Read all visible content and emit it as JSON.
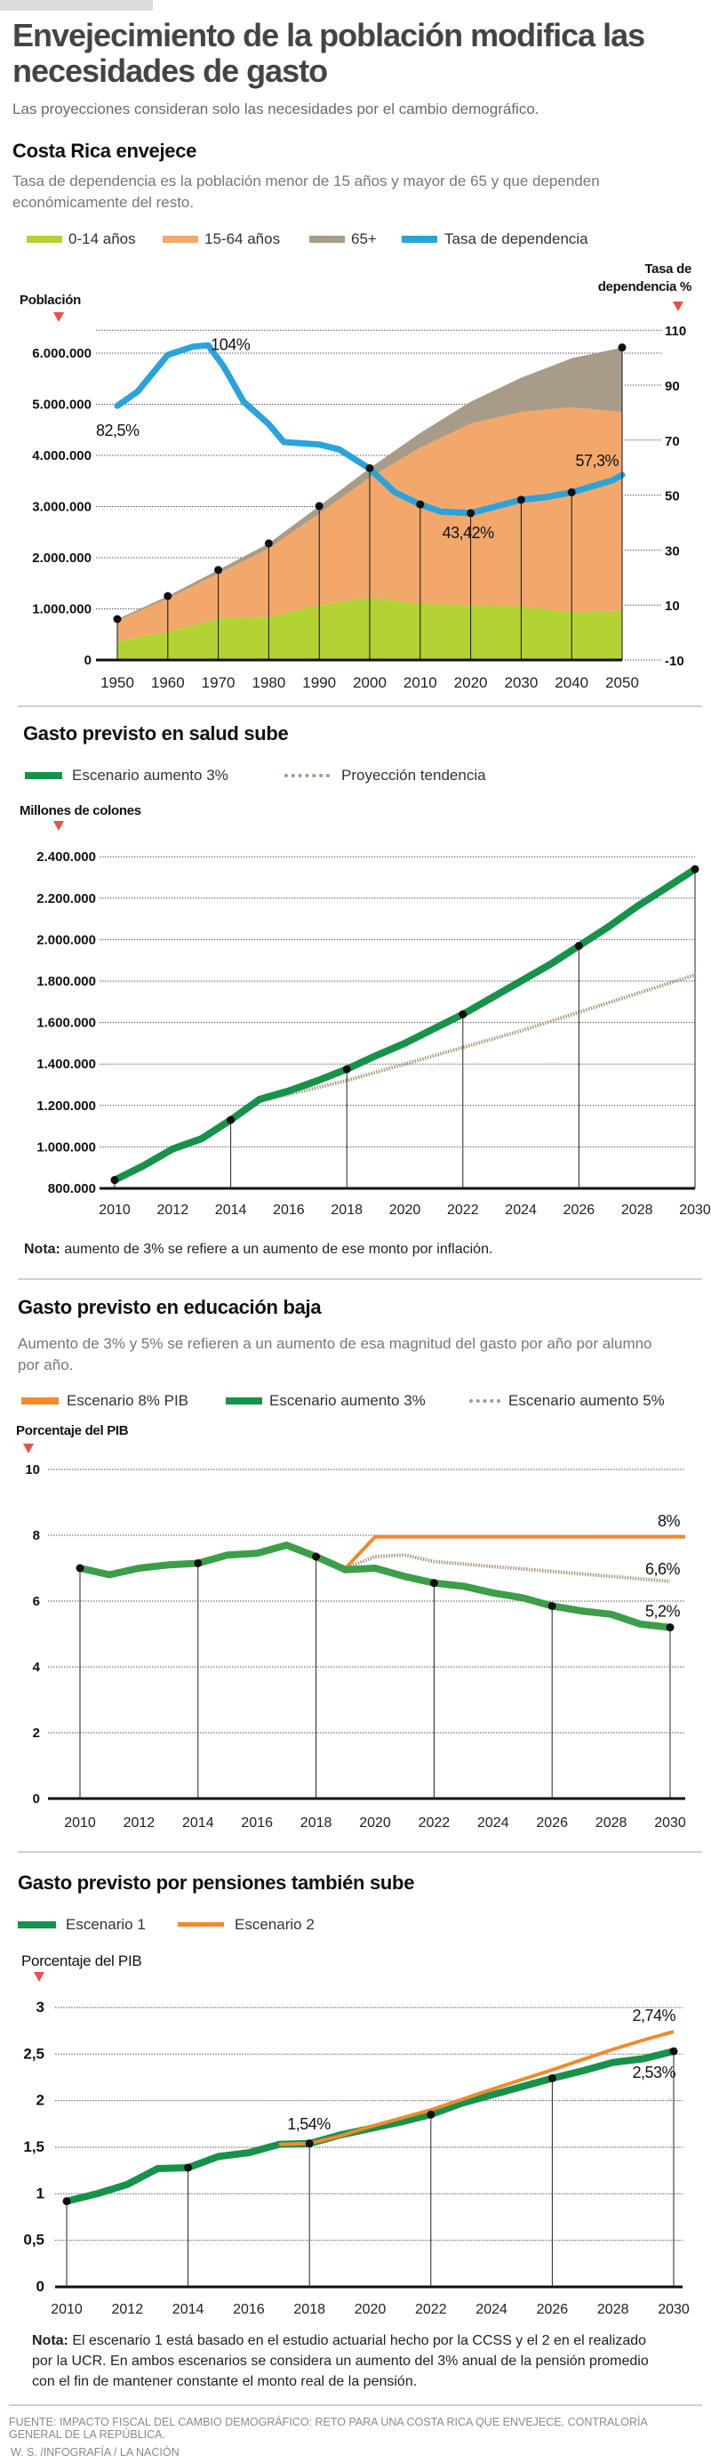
{
  "header": {
    "title": "Envejecimiento de la población modifica las necesidades de gasto",
    "subtitle": "Las proyecciones consideran solo las necesidades por el cambio demográfico."
  },
  "colors": {
    "green_0_14": "#b3d334",
    "orange_15_64": "#f2a86b",
    "gray_65": "#a89c88",
    "blue_rate": "#29a3dc",
    "green_line": "#17924a",
    "green_line_edu": "#3b9e48",
    "orange_line": "#f08a2c",
    "dotted_line": "#a89880",
    "triangle": "#e8504a"
  },
  "section1": {
    "title": "Costa Rica envejece",
    "description": "Tasa de dependencia es la población menor de 15 años y mayor de 65 y que dependen económicamente del resto.",
    "legend": [
      "0-14 años",
      "15-64 años",
      "65+",
      "Tasa de dependencia"
    ],
    "left_axis_title": "Población",
    "right_axis_title_1": "Tasa de",
    "right_axis_title_2": "dependencia %"
  },
  "section2": {
    "title": "Gasto previsto en salud sube",
    "legend": [
      "Escenario aumento 3%",
      "Proyección tendencia"
    ],
    "axis_title": "Millones de colones",
    "note_label": "Nota:",
    "note_text": " aumento de 3% se refiere a un aumento de ese monto por inflación."
  },
  "section3": {
    "title": "Gasto previsto en educación baja",
    "description": "Aumento de 3% y 5% se refieren a un aumento de esa magnitud del gasto por año por alumno por año.",
    "legend": [
      "Escenario 8% PIB",
      "Escenario aumento 3%",
      "Escenario aumento 5%"
    ],
    "axis_title": "Porcentaje del PIB"
  },
  "section4": {
    "title": "Gasto previsto por pensiones también sube",
    "legend": [
      "Escenario 1",
      "Escenario 2"
    ],
    "axis_title": "Porcentaje del PIB",
    "note_label": "Nota:",
    "note_text": " El escenario 1 está basado en el estudio actuarial hecho por la CCSS y el 2 en el realizado por la UCR. En ambos escenarios se considera un aumento del 3% anual de la pensión promedio con el fin de mantener constante el monto real de la pensión."
  },
  "footer": {
    "source": "Fuente: Impacto fiscal del cambio demográfico: reto para una Costa Rica que envejece. Contraloría General de la República.",
    "credit": "W. S. /INFOGRAFÍA / LA NACIÓN"
  },
  "chart_data": [
    {
      "type": "area",
      "stacked": true,
      "x": [
        1950,
        1960,
        1970,
        1980,
        1990,
        2000,
        2010,
        2020,
        2030,
        2040,
        2050
      ],
      "xticks": [
        "1950",
        "1960",
        "1970",
        "1980",
        "1990",
        "2000",
        "2010",
        "2020",
        "2030",
        "2040",
        "2050"
      ],
      "series": [
        {
          "name": "0-14 años",
          "values": [
            370000,
            550000,
            810000,
            840000,
            1070000,
            1220000,
            1100000,
            1070000,
            1050000,
            930000,
            960000
          ]
        },
        {
          "name": "15-64 años",
          "values": [
            400000,
            650000,
            880000,
            1340000,
            1790000,
            2350000,
            3050000,
            3550000,
            3800000,
            4010000,
            3890000
          ]
        },
        {
          "name": "65+",
          "values": [
            30000,
            50000,
            70000,
            100000,
            150000,
            180000,
            290000,
            430000,
            670000,
            960000,
            1260000
          ]
        }
      ],
      "line_series": {
        "name": "Tasa de dependencia",
        "axis": "right",
        "x": [
          1950,
          1954,
          1960,
          1965,
          1968,
          1971,
          1975,
          1980,
          1983,
          1990,
          1994,
          2000,
          2005,
          2010,
          2014,
          2020,
          2030,
          2035,
          2040,
          2048,
          2050
        ],
        "values": [
          82.5,
          87.6,
          101,
          104,
          104.5,
          97,
          84,
          75.8,
          69.3,
          68.4,
          66.6,
          59.6,
          51,
          46.6,
          44,
          43.42,
          48.3,
          49.3,
          51,
          55.3,
          57.3
        ]
      },
      "markers": [
        {
          "year": 1950,
          "on": "population"
        },
        {
          "year": 1960,
          "on": "population"
        },
        {
          "year": 1970,
          "on": "population"
        },
        {
          "year": 1980,
          "on": "population"
        },
        {
          "year": 1990,
          "on": "population"
        },
        {
          "year": 2000,
          "on": "population"
        },
        {
          "year": 2010,
          "on": "rate"
        },
        {
          "year": 2020,
          "on": "rate"
        },
        {
          "year": 2030,
          "on": "rate"
        },
        {
          "year": 2040,
          "on": "rate"
        },
        {
          "year": 2050,
          "on": "population"
        }
      ],
      "annotations": [
        {
          "text": "82,5%",
          "year": 1950,
          "value": 82.5
        },
        {
          "text": "104%",
          "year": 1965,
          "value": 104
        },
        {
          "text": "43,42%",
          "year": 2020,
          "value": 43.42
        },
        {
          "text": "57,3%",
          "year": 2050,
          "value": 57.3
        }
      ],
      "ylim_left": [
        0,
        6000000
      ],
      "yticks_left": [
        {
          "value": 0,
          "label": "0"
        },
        {
          "value": 1000000,
          "label": "1.000.000"
        },
        {
          "value": 2000000,
          "label": "2.000.000"
        },
        {
          "value": 3000000,
          "label": "3.000.000"
        },
        {
          "value": 4000000,
          "label": "4.000.000"
        },
        {
          "value": 5000000,
          "label": "5.000.000"
        },
        {
          "value": 6000000,
          "label": "6.000.000"
        }
      ],
      "ylim_right": [
        -10,
        110
      ],
      "yticks_right": [
        {
          "value": -10,
          "label": "-10"
        },
        {
          "value": 10,
          "label": "10"
        },
        {
          "value": 30,
          "label": "30"
        },
        {
          "value": 50,
          "label": "50"
        },
        {
          "value": 70,
          "label": "70"
        },
        {
          "value": 90,
          "label": "90"
        },
        {
          "value": 110,
          "label": "110"
        }
      ],
      "grid": "dotted horizontal"
    },
    {
      "type": "line",
      "x": [
        2010,
        2011,
        2012,
        2013,
        2014,
        2015,
        2016,
        2017,
        2018,
        2019,
        2020,
        2021,
        2022,
        2023,
        2024,
        2025,
        2026,
        2027,
        2028,
        2029,
        2030
      ],
      "series": [
        {
          "name": "Escenario aumento 3%",
          "style": "solid",
          "values": [
            840000,
            910000,
            990000,
            1040000,
            1130000,
            1230000,
            1270000,
            1320000,
            1375000,
            1440000,
            1500000,
            1570000,
            1640000,
            1720000,
            1800000,
            1880000,
            1970000,
            2060000,
            2160000,
            2250000,
            2340000
          ]
        },
        {
          "name": "Proyección tendencia",
          "style": "dotted",
          "x": [
            2015,
            2018,
            2020,
            2022,
            2024,
            2026,
            2028,
            2030
          ],
          "values": [
            1220000,
            1320000,
            1400000,
            1480000,
            1560000,
            1650000,
            1740000,
            1830000
          ]
        }
      ],
      "markers": [
        2010,
        2014,
        2018,
        2022,
        2026,
        2030
      ],
      "xticks": [
        "2010",
        "2012",
        "2014",
        "2016",
        "2018",
        "2020",
        "2022",
        "2024",
        "2026",
        "2028",
        "2030"
      ],
      "ylim": [
        800000,
        2400000
      ],
      "yticks": [
        {
          "value": 800000,
          "label": "800.000"
        },
        {
          "value": 1000000,
          "label": "1.000.000"
        },
        {
          "value": 1200000,
          "label": "1.200.000"
        },
        {
          "value": 1400000,
          "label": "1.400.000"
        },
        {
          "value": 1600000,
          "label": "1.600.000"
        },
        {
          "value": 1800000,
          "label": "1.800.000"
        },
        {
          "value": 2000000,
          "label": "2.000.000"
        },
        {
          "value": 2200000,
          "label": "2.200.000"
        },
        {
          "value": 2400000,
          "label": "2.400.000"
        }
      ],
      "grid": "dotted horizontal"
    },
    {
      "type": "line",
      "x": [
        2010,
        2011,
        2012,
        2013,
        2014,
        2015,
        2016,
        2017,
        2018,
        2019,
        2020,
        2021,
        2022,
        2023,
        2024,
        2025,
        2026,
        2027,
        2028,
        2029,
        2030
      ],
      "series": [
        {
          "name": "Escenario aumento 3%",
          "style": "solid",
          "values": [
            7.0,
            6.8,
            7.0,
            7.1,
            7.15,
            7.4,
            7.45,
            7.7,
            7.35,
            6.95,
            7.0,
            6.75,
            6.55,
            6.45,
            6.25,
            6.1,
            5.85,
            5.7,
            5.6,
            5.3,
            5.2
          ]
        },
        {
          "name": "Escenario 8% PIB",
          "style": "solid",
          "x": [
            2019,
            2020,
            2030
          ],
          "values": [
            7.0,
            7.95,
            7.95
          ]
        },
        {
          "name": "Escenario aumento 5%",
          "style": "dotted",
          "x": [
            2019,
            2020,
            2021,
            2022,
            2024,
            2026,
            2028,
            2030
          ],
          "values": [
            7.0,
            7.35,
            7.4,
            7.2,
            7.05,
            6.9,
            6.75,
            6.6
          ]
        }
      ],
      "markers": [
        2010,
        2014,
        2018,
        2022,
        2026,
        2030
      ],
      "annotations": [
        {
          "text": "8%",
          "year": 2030,
          "value": 7.95
        },
        {
          "text": "6,6%",
          "year": 2030,
          "value": 6.6
        },
        {
          "text": "5,2%",
          "year": 2030,
          "value": 5.2
        }
      ],
      "xticks": [
        "2010",
        "2012",
        "2014",
        "2016",
        "2018",
        "2020",
        "2022",
        "2024",
        "2026",
        "2028",
        "2030"
      ],
      "ylim": [
        0,
        10
      ],
      "yticks": [
        {
          "value": 0,
          "label": "0"
        },
        {
          "value": 2,
          "label": "2"
        },
        {
          "value": 4,
          "label": "4"
        },
        {
          "value": 6,
          "label": "6"
        },
        {
          "value": 8,
          "label": "8"
        },
        {
          "value": 10,
          "label": "10"
        }
      ],
      "grid": "dotted horizontal"
    },
    {
      "type": "line",
      "x": [
        2010,
        2011,
        2012,
        2013,
        2014,
        2015,
        2016,
        2017,
        2018,
        2019,
        2020,
        2021,
        2022,
        2023,
        2024,
        2025,
        2026,
        2027,
        2028,
        2029,
        2030
      ],
      "series": [
        {
          "name": "Escenario 1",
          "style": "solid",
          "values": [
            0.92,
            1.0,
            1.1,
            1.27,
            1.28,
            1.4,
            1.44,
            1.53,
            1.54,
            1.63,
            1.7,
            1.77,
            1.85,
            1.97,
            2.06,
            2.15,
            2.24,
            2.32,
            2.41,
            2.45,
            2.53
          ]
        },
        {
          "name": "Escenario 2",
          "style": "solid",
          "x": [
            2017,
            2018,
            2019,
            2020,
            2022,
            2024,
            2026,
            2028,
            2029,
            2030
          ],
          "values": [
            1.53,
            1.54,
            1.62,
            1.72,
            1.9,
            2.12,
            2.33,
            2.55,
            2.65,
            2.74
          ]
        }
      ],
      "markers": [
        2010,
        2014,
        2018,
        2022,
        2026,
        2030
      ],
      "annotations": [
        {
          "text": "1,54%",
          "year": 2018,
          "value": 1.54
        },
        {
          "text": "2,74%",
          "year": 2030,
          "value": 2.74
        },
        {
          "text": "2,53%",
          "year": 2030,
          "value": 2.53
        }
      ],
      "xticks": [
        "2010",
        "2012",
        "2014",
        "2016",
        "2018",
        "2020",
        "2022",
        "2024",
        "2026",
        "2028",
        "2030"
      ],
      "ylim": [
        0,
        3
      ],
      "yticks": [
        {
          "value": 0,
          "label": "0"
        },
        {
          "value": 0.5,
          "label": "0,5"
        },
        {
          "value": 1,
          "label": "1"
        },
        {
          "value": 1.5,
          "label": "1,5"
        },
        {
          "value": 2,
          "label": "2"
        },
        {
          "value": 2.5,
          "label": "2,5"
        },
        {
          "value": 3,
          "label": "3"
        }
      ],
      "grid": "dotted horizontal"
    }
  ]
}
